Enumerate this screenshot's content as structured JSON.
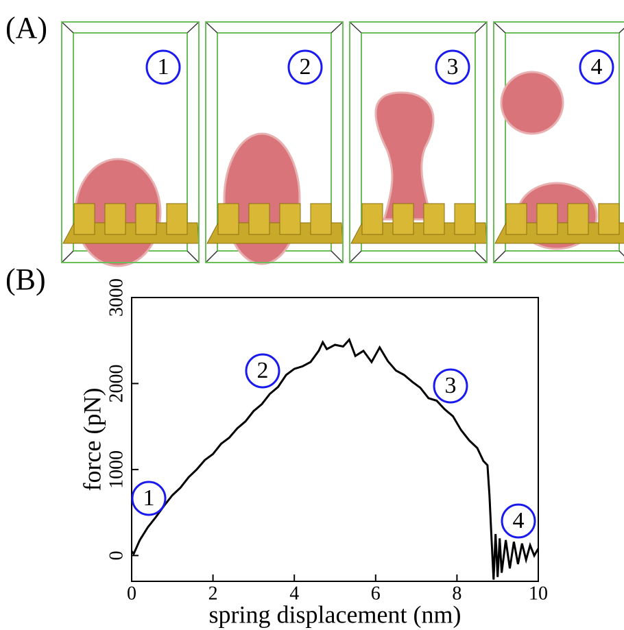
{
  "panel_a": {
    "label": "(A)",
    "frames": [
      {
        "label": "1"
      },
      {
        "label": "2"
      },
      {
        "label": "3"
      },
      {
        "label": "4"
      }
    ]
  },
  "chart_data": {
    "type": "line",
    "panel_label": "(B)",
    "x_label": "spring displacement (nm)",
    "y_label": "force (pN)",
    "annotations": [
      "1",
      "2",
      "3",
      "4"
    ],
    "x": [
      0,
      0.05,
      0.2,
      0.4,
      0.6,
      0.8,
      1.0,
      1.2,
      1.4,
      1.6,
      1.8,
      2.0,
      2.2,
      2.4,
      2.6,
      2.8,
      3.0,
      3.2,
      3.4,
      3.6,
      3.8,
      4.0,
      4.2,
      4.4,
      4.6,
      4.7,
      4.8,
      5.0,
      5.2,
      5.35,
      5.5,
      5.7,
      5.9,
      6.1,
      6.3,
      6.5,
      6.7,
      6.9,
      7.1,
      7.3,
      7.5,
      7.7,
      7.9,
      8.1,
      8.3,
      8.5,
      8.65,
      8.75,
      8.8,
      8.85,
      8.9,
      8.95,
      9.0,
      9.05,
      9.1,
      9.2,
      9.3,
      9.4,
      9.5,
      9.6,
      9.7,
      9.8,
      9.9,
      10.0
    ],
    "values": [
      50,
      20,
      180,
      330,
      450,
      580,
      700,
      790,
      910,
      1000,
      1110,
      1180,
      1300,
      1370,
      1480,
      1560,
      1680,
      1760,
      1880,
      1960,
      2100,
      2170,
      2200,
      2250,
      2380,
      2480,
      2400,
      2450,
      2430,
      2510,
      2320,
      2380,
      2250,
      2420,
      2260,
      2150,
      2100,
      2020,
      1950,
      1830,
      1800,
      1700,
      1620,
      1460,
      1340,
      1250,
      1100,
      1050,
      700,
      200,
      -280,
      250,
      -250,
      200,
      -200,
      180,
      -150,
      160,
      -100,
      140,
      -50,
      120,
      0,
      80
    ],
    "color": "#000000",
    "xlim": [
      0,
      10
    ],
    "xticks": [
      0,
      2,
      4,
      6,
      8,
      10
    ],
    "ylim": [
      -300,
      3000
    ],
    "yticks": [
      0,
      1000,
      2000,
      3000
    ]
  }
}
